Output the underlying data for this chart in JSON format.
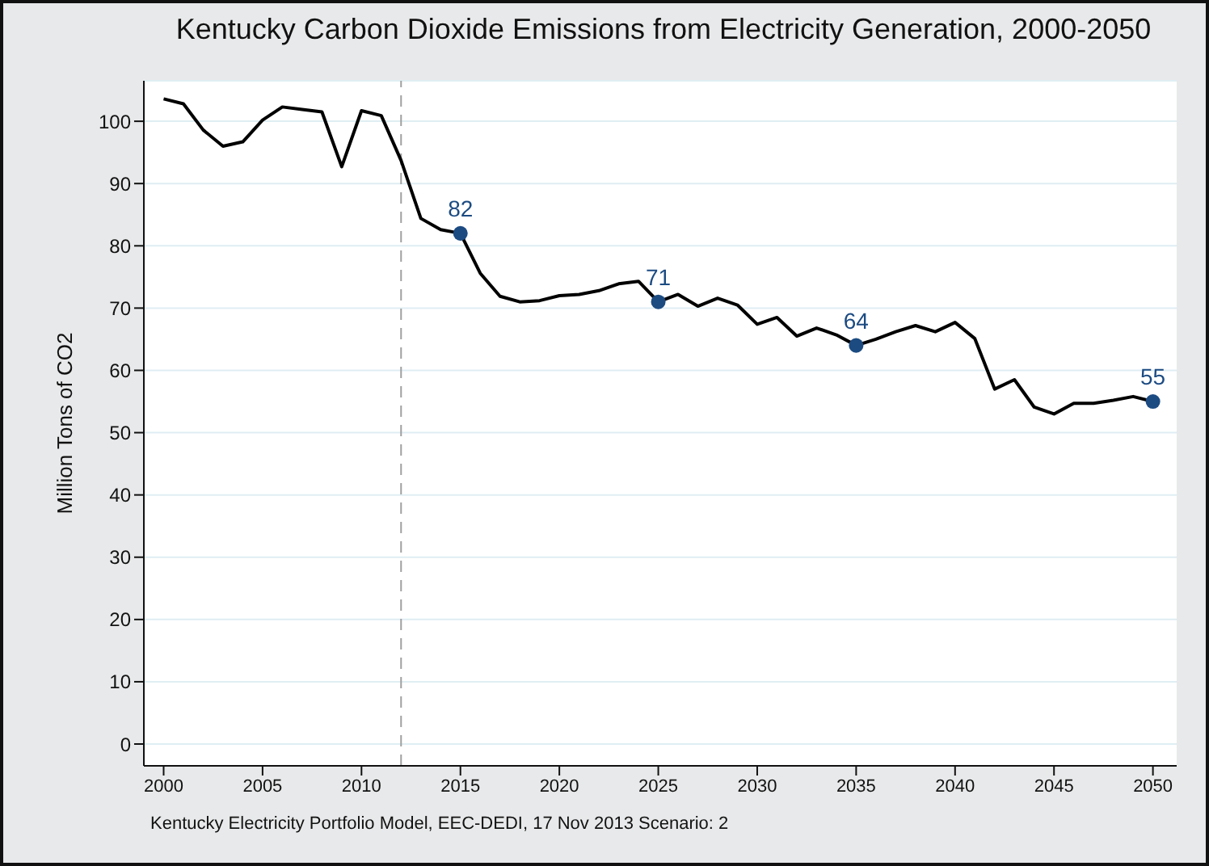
{
  "chart_data": {
    "type": "line",
    "title": "Kentucky Carbon Dioxide Emissions from Electricity Generation, 2000-2050",
    "ylabel": "Million Tons of CO2",
    "annotations": [
      "Kentucky Electricity Portfolio Model, EEC-DEDI, 17 Nov 2013 Scenario: 2"
    ],
    "xlim": [
      1999,
      2051.2
    ],
    "xticks": [
      2000,
      2005,
      2010,
      2015,
      2020,
      2025,
      2030,
      2035,
      2040,
      2045,
      2050
    ],
    "ylim": [
      -3.5,
      106.5
    ],
    "yticks": [
      0,
      10,
      20,
      30,
      40,
      50,
      60,
      70,
      80,
      90,
      100
    ],
    "grid": "y",
    "legend": false,
    "marker": "none",
    "line_style": "solid",
    "ref_lines": [
      {
        "axis": "x",
        "value": 2012,
        "color": "#a0a0a0",
        "line_style": "dashed"
      }
    ],
    "series": [
      {
        "color": "#000000",
        "x": [
          2000,
          2001,
          2002,
          2003,
          2004,
          2005,
          2006,
          2007,
          2008,
          2009,
          2010,
          2011,
          2012,
          2013,
          2014,
          2015,
          2016,
          2017,
          2018,
          2019,
          2020,
          2021,
          2022,
          2023,
          2024,
          2025,
          2026,
          2027,
          2028,
          2029,
          2030,
          2031,
          2032,
          2033,
          2034,
          2035,
          2036,
          2037,
          2038,
          2039,
          2040,
          2041,
          2042,
          2043,
          2044,
          2045,
          2046,
          2047,
          2048,
          2049,
          2050
        ],
        "values": [
          103.6,
          102.8,
          98.6,
          96.0,
          96.7,
          100.2,
          102.3,
          101.9,
          101.5,
          92.7,
          101.7,
          100.9,
          93.7,
          84.4,
          82.6,
          82,
          75.6,
          71.9,
          71.0,
          71.2,
          72.0,
          72.2,
          72.8,
          73.9,
          74.3,
          71,
          72.2,
          70.3,
          71.6,
          70.5,
          67.4,
          68.5,
          65.5,
          66.8,
          65.7,
          64,
          65.0,
          66.2,
          67.2,
          66.2,
          67.7,
          65.1,
          57.0,
          58.5,
          54.1,
          53.0,
          54.7,
          54.7,
          55.2,
          55.8,
          55
        ]
      },
      {
        "type": "scatter",
        "color": "#1c4b82",
        "marker": "circle",
        "x": [
          2015,
          2025,
          2035,
          2050
        ],
        "values": [
          82,
          71,
          64,
          55
        ],
        "value_labels": [
          "82",
          "71",
          "64",
          "55"
        ]
      }
    ]
  }
}
